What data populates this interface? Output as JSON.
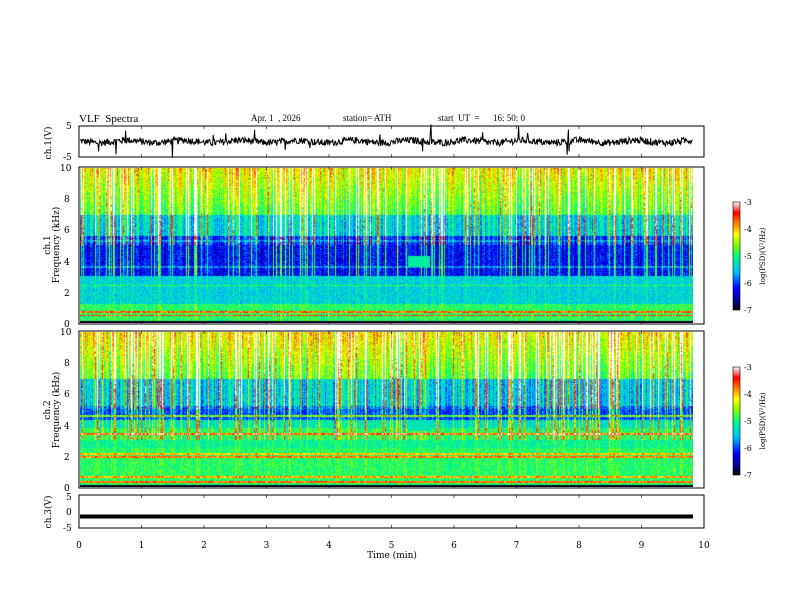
{
  "header": {
    "title": "VLF  Spectra",
    "date": "Apr. 1  , 2026",
    "station": "station= ATH",
    "start_label": "start  UT  =",
    "start_time": "16: 50: 0"
  },
  "chart_data": [
    {
      "type": "line",
      "panel": "ch1-waveform",
      "ylabel": "ch.1(V)",
      "ylim": [
        -5,
        5
      ],
      "yticks": [
        "5",
        "-5"
      ],
      "xlim": [
        0,
        10
      ],
      "series_level": 0,
      "color": "#000000"
    },
    {
      "type": "heatmap",
      "panel": "ch1-spectrogram",
      "title": "ch.1",
      "ylabel": "Frequency  (kHz)",
      "ylim": [
        0,
        10
      ],
      "yticks": [
        "0",
        "2",
        "4",
        "6",
        "8",
        "10"
      ],
      "xlim": [
        0,
        9.8
      ],
      "annotation": {
        "x_range": [
          5.25,
          5.6
        ],
        "freq_range": [
          3.6,
          4.3
        ],
        "label": ""
      }
    },
    {
      "type": "heatmap",
      "panel": "ch2-spectrogram",
      "title": "ch.2",
      "ylabel": "Frequency  (kHz)",
      "ylim": [
        0,
        10
      ],
      "yticks": [
        "0",
        "2",
        "4",
        "6",
        "8",
        "10"
      ],
      "xlim": [
        0,
        9.8
      ]
    },
    {
      "type": "line",
      "panel": "ch3-waveform",
      "ylabel": "ch.3(V)",
      "ylim": [
        -5,
        5
      ],
      "yticks": [
        "5",
        "0",
        "-5"
      ],
      "xlim": [
        0,
        10
      ],
      "series_level": -1.5,
      "color": "#000000"
    }
  ],
  "time_axis": {
    "label": "Time  (min)",
    "ticks": [
      "0",
      "1",
      "2",
      "3",
      "4",
      "5",
      "6",
      "7",
      "8",
      "9",
      "10"
    ]
  },
  "colorbar": {
    "label": "log(PSD)(V²/Hz)",
    "ticks": [
      "-3",
      "-4",
      "-5",
      "-6",
      "-7"
    ],
    "range": [
      -7,
      -3
    ],
    "colors": [
      "#000000",
      "#00008b",
      "#0000ff",
      "#00bfff",
      "#00ff80",
      "#7fff00",
      "#ffff00",
      "#ff8000",
      "#ff0000",
      "#ffffff"
    ]
  }
}
